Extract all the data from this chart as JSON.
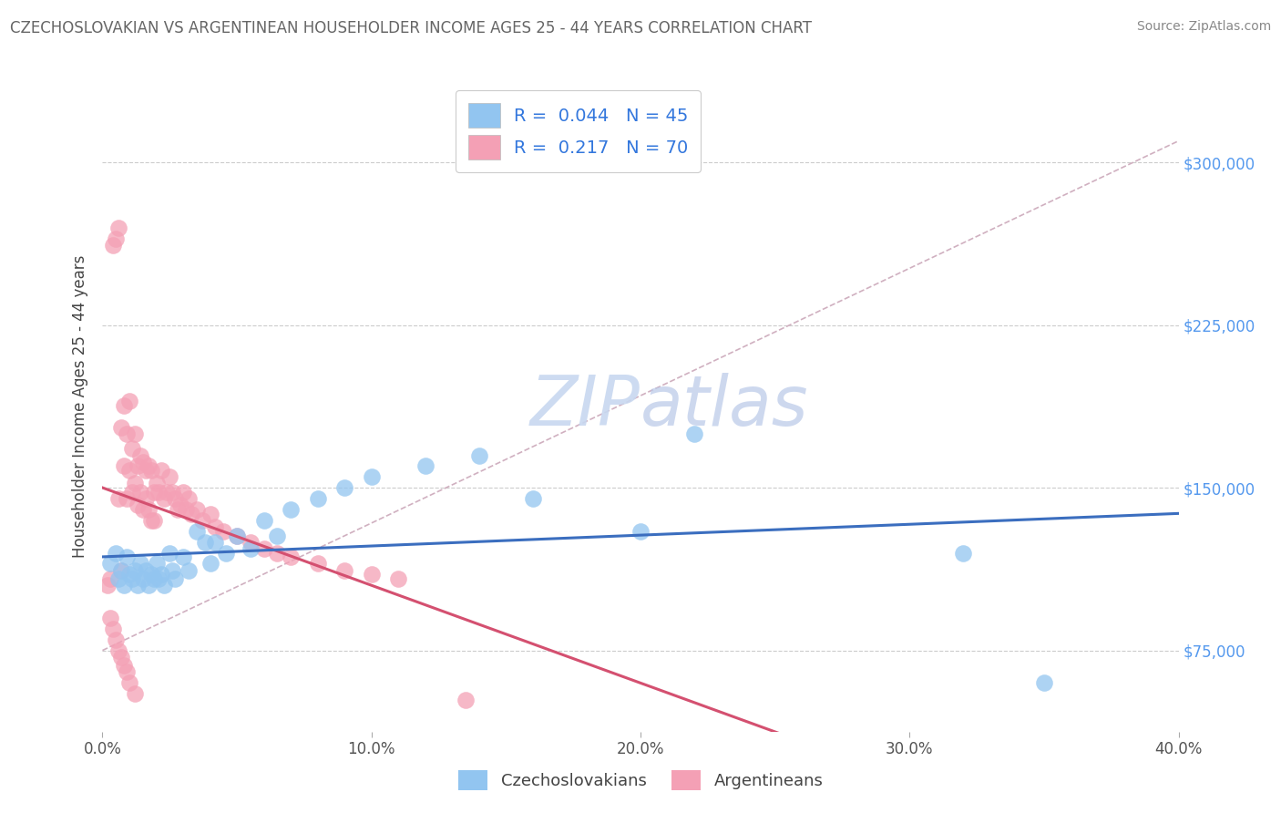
{
  "title": "CZECHOSLOVAKIAN VS ARGENTINEAN HOUSEHOLDER INCOME AGES 25 - 44 YEARS CORRELATION CHART",
  "source": "Source: ZipAtlas.com",
  "ylabel": "Householder Income Ages 25 - 44 years",
  "xlim": [
    0.0,
    0.4
  ],
  "ylim": [
    37500,
    337500
  ],
  "yticks": [
    75000,
    150000,
    225000,
    300000
  ],
  "ytick_labels": [
    "$75,000",
    "$150,000",
    "$225,000",
    "$300,000"
  ],
  "xticks": [
    0.0,
    0.1,
    0.2,
    0.3,
    0.4
  ],
  "xtick_labels": [
    "0.0%",
    "10.0%",
    "20.0%",
    "30.0%",
    "40.0%"
  ],
  "blue_R": "0.044",
  "blue_N": "45",
  "pink_R": "0.217",
  "pink_N": "70",
  "blue_color": "#92C5F0",
  "pink_color": "#F4A0B5",
  "blue_line_color": "#3B6EBF",
  "pink_line_color": "#D45070",
  "dash_line_color": "#D0B0C0",
  "background_color": "#FFFFFF",
  "grid_color": "#CCCCCC",
  "watermark_color": "#C8D8F0",
  "blue_scatter_x": [
    0.003,
    0.005,
    0.006,
    0.007,
    0.008,
    0.009,
    0.01,
    0.011,
    0.012,
    0.013,
    0.014,
    0.015,
    0.016,
    0.017,
    0.018,
    0.019,
    0.02,
    0.021,
    0.022,
    0.023,
    0.025,
    0.026,
    0.027,
    0.03,
    0.032,
    0.035,
    0.038,
    0.04,
    0.042,
    0.046,
    0.05,
    0.055,
    0.06,
    0.065,
    0.07,
    0.08,
    0.09,
    0.1,
    0.12,
    0.14,
    0.16,
    0.2,
    0.22,
    0.32,
    0.35
  ],
  "blue_scatter_y": [
    115000,
    120000,
    108000,
    112000,
    105000,
    118000,
    110000,
    108000,
    112000,
    105000,
    115000,
    108000,
    112000,
    105000,
    110000,
    108000,
    115000,
    108000,
    110000,
    105000,
    120000,
    112000,
    108000,
    118000,
    112000,
    130000,
    125000,
    115000,
    125000,
    120000,
    128000,
    122000,
    135000,
    128000,
    140000,
    145000,
    150000,
    155000,
    160000,
    165000,
    145000,
    130000,
    175000,
    120000,
    60000
  ],
  "pink_scatter_x": [
    0.002,
    0.003,
    0.004,
    0.005,
    0.006,
    0.006,
    0.007,
    0.007,
    0.008,
    0.008,
    0.009,
    0.009,
    0.01,
    0.01,
    0.011,
    0.011,
    0.012,
    0.012,
    0.013,
    0.013,
    0.014,
    0.014,
    0.015,
    0.015,
    0.016,
    0.016,
    0.017,
    0.017,
    0.018,
    0.018,
    0.019,
    0.019,
    0.02,
    0.021,
    0.022,
    0.023,
    0.024,
    0.025,
    0.026,
    0.027,
    0.028,
    0.029,
    0.03,
    0.031,
    0.032,
    0.033,
    0.035,
    0.037,
    0.04,
    0.042,
    0.045,
    0.05,
    0.055,
    0.06,
    0.065,
    0.07,
    0.08,
    0.09,
    0.1,
    0.11,
    0.003,
    0.004,
    0.005,
    0.006,
    0.007,
    0.008,
    0.009,
    0.01,
    0.012,
    0.135
  ],
  "pink_scatter_y": [
    105000,
    108000,
    262000,
    265000,
    270000,
    145000,
    178000,
    112000,
    188000,
    160000,
    175000,
    145000,
    190000,
    158000,
    168000,
    148000,
    175000,
    152000,
    160000,
    142000,
    165000,
    148000,
    162000,
    140000,
    158000,
    145000,
    160000,
    140000,
    158000,
    135000,
    148000,
    135000,
    152000,
    148000,
    158000,
    145000,
    148000,
    155000,
    148000,
    145000,
    140000,
    142000,
    148000,
    140000,
    145000,
    138000,
    140000,
    135000,
    138000,
    132000,
    130000,
    128000,
    125000,
    122000,
    120000,
    118000,
    115000,
    112000,
    110000,
    108000,
    90000,
    85000,
    80000,
    75000,
    72000,
    68000,
    65000,
    60000,
    55000,
    52000
  ]
}
